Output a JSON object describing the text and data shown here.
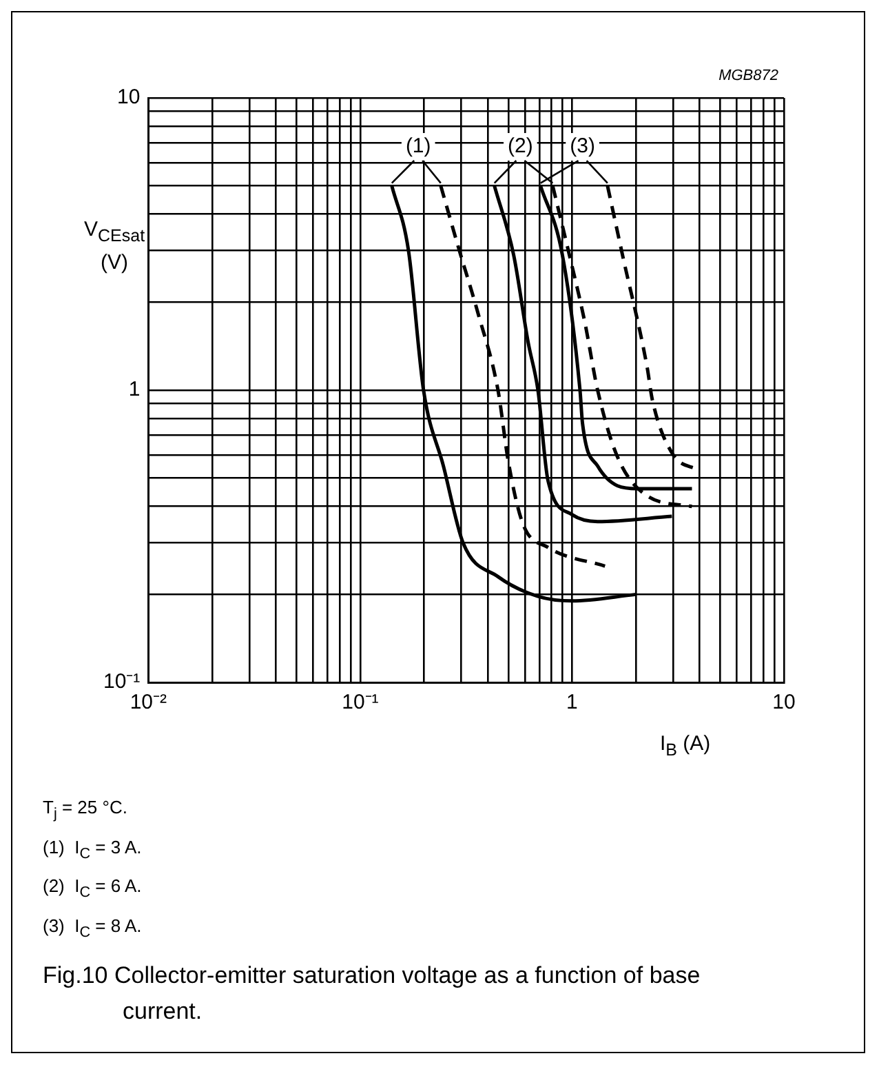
{
  "chart_data": {
    "type": "line",
    "xlabel": "I$_{B}$ (A)",
    "ylabel": "V$_{CEsat}$\n(V)",
    "log": "xy",
    "grid": true,
    "legend": false,
    "marker": "none",
    "xlim": [
      0.01,
      10
    ],
    "ylim": [
      0.1,
      10
    ],
    "xticks": [
      {
        "value": 0.01,
        "label": "10⁻²"
      },
      {
        "value": 0.02,
        "label": null
      },
      {
        "value": 0.03,
        "label": null
      },
      {
        "value": 0.04,
        "label": null
      },
      {
        "value": 0.05,
        "label": null
      },
      {
        "value": 0.06,
        "label": null
      },
      {
        "value": 0.07,
        "label": null
      },
      {
        "value": 0.08,
        "label": null
      },
      {
        "value": 0.09,
        "label": null
      },
      {
        "value": 0.1,
        "label": "10⁻¹"
      },
      {
        "value": 0.2,
        "label": null
      },
      {
        "value": 0.3,
        "label": null
      },
      {
        "value": 0.4,
        "label": null
      },
      {
        "value": 0.5,
        "label": null
      },
      {
        "value": 0.6,
        "label": null
      },
      {
        "value": 0.7,
        "label": null
      },
      {
        "value": 0.8,
        "label": null
      },
      {
        "value": 0.9,
        "label": null
      },
      1,
      {
        "value": 2,
        "label": null
      },
      {
        "value": 3,
        "label": null
      },
      {
        "value": 4,
        "label": null
      },
      {
        "value": 5,
        "label": null
      },
      {
        "value": 6,
        "label": null
      },
      {
        "value": 7,
        "label": null
      },
      {
        "value": 8,
        "label": null
      },
      {
        "value": 9,
        "label": null
      },
      10
    ],
    "yticks": [
      {
        "value": 0.1,
        "label": "10⁻¹"
      },
      {
        "value": 0.2,
        "label": null
      },
      {
        "value": 0.3,
        "label": null
      },
      {
        "value": 0.4,
        "label": null
      },
      {
        "value": 0.5,
        "label": null
      },
      {
        "value": 0.6,
        "label": null
      },
      {
        "value": 0.7,
        "label": null
      },
      {
        "value": 0.8,
        "label": null
      },
      {
        "value": 0.9,
        "label": null
      },
      1,
      {
        "value": 2,
        "label": null
      },
      {
        "value": 3,
        "label": null
      },
      {
        "value": 4,
        "label": null
      },
      {
        "value": 5,
        "label": null
      },
      {
        "value": 6,
        "label": null
      },
      {
        "value": 7,
        "label": null
      },
      {
        "value": 8,
        "label": null
      },
      {
        "value": 9,
        "label": null
      },
      10
    ],
    "series": [
      {
        "color": "#000000",
        "line_style": "solid",
        "x": [
          0.141,
          0.169,
          0.199,
          0.247,
          0.306,
          0.447,
          0.689,
          1.0,
          2.0
        ],
        "values": [
          5,
          3.0,
          1.0,
          0.55,
          0.3,
          0.23,
          0.197,
          0.19,
          0.2
        ]
      },
      {
        "color": "#000000",
        "line_style": "dashed",
        "x": [
          0.24,
          0.29,
          0.36,
          0.447,
          0.5,
          0.585,
          0.767,
          1.43
        ],
        "values": [
          5,
          3.1,
          1.83,
          1.0,
          0.57,
          0.35,
          0.29,
          0.25
        ]
      },
      {
        "color": "#000000",
        "line_style": "solid",
        "x": [
          0.43,
          0.53,
          0.62,
          0.69,
          0.77,
          1.0,
          1.32,
          2.96
        ],
        "values": [
          5,
          2.9,
          1.46,
          1.0,
          0.49,
          0.375,
          0.355,
          0.37
        ]
      },
      {
        "color": "#000000",
        "line_style": "dashed",
        "x": [
          0.81,
          0.95,
          1.15,
          1.32,
          1.64,
          2.26,
          3.68
        ],
        "values": [
          5,
          3.1,
          1.7,
          1.0,
          0.59,
          0.435,
          0.4
        ]
      },
      {
        "color": "#000000",
        "line_style": "solid",
        "x": [
          0.71,
          0.9,
          1.09,
          1.12,
          1.32,
          2.03,
          3.68
        ],
        "values": [
          5,
          2.9,
          1.0,
          0.77,
          0.55,
          0.46,
          0.46
        ]
      },
      {
        "color": "#000000",
        "line_style": "dashed",
        "x": [
          1.47,
          1.73,
          2.26,
          2.39,
          2.96,
          4.0
        ],
        "values": [
          5,
          2.9,
          1.2,
          0.93,
          0.61,
          0.53
        ]
      }
    ],
    "annotations": [
      {
        "text": "(1)",
        "x": 0.188,
        "y": 6.8
      },
      {
        "text": "(2)",
        "x": 0.57,
        "y": 6.8
      },
      {
        "text": "(3)",
        "x": 1.12,
        "y": 6.8
      },
      "MGB872",
      "T$_{j}$ = 25 °C.",
      "(1)  I$_{C}$ = 3 A.",
      "(2)  I$_{C}$ = 6 A.",
      "(3)  I$_{C}$ = 8 A.",
      "Fig.10  Collector-emitter saturation voltage as a function of base current."
    ]
  }
}
